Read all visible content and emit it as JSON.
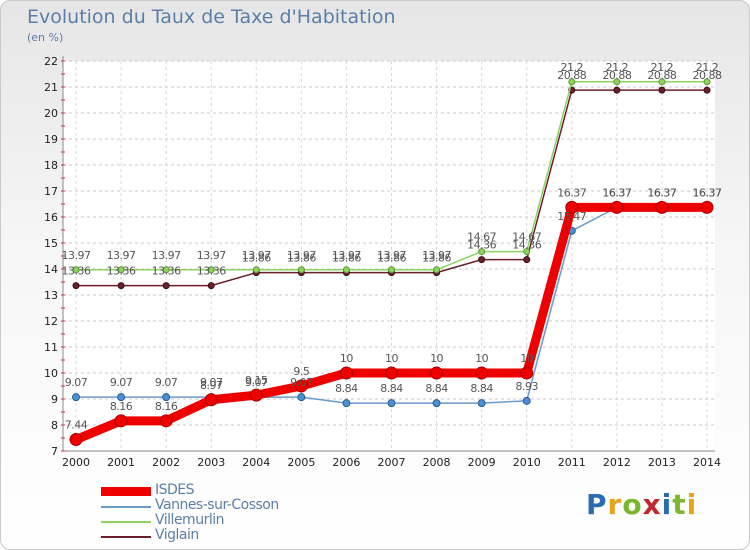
{
  "header": {
    "title": "Evolution du Taux de Taxe d'Habitation",
    "unit": "(en %)"
  },
  "brand": {
    "name": "Proxiti",
    "letter_colors": [
      "#2a6cb3",
      "#e8a317",
      "#7ab72d",
      "#c2272d",
      "#2a6cb3",
      "#7ab72d",
      "#e8a317"
    ]
  },
  "chart_data": {
    "type": "line",
    "title": "Evolution du Taux de Taxe d'Habitation",
    "ylabel": "(en %)",
    "xlabel": "",
    "x": [
      "2000",
      "2001",
      "2002",
      "2003",
      "2004",
      "2005",
      "2006",
      "2007",
      "2008",
      "2009",
      "2010",
      "2011",
      "2012",
      "2013",
      "2014"
    ],
    "ylim": [
      7,
      22
    ],
    "yticks": [
      7,
      8,
      9,
      10,
      11,
      12,
      13,
      14,
      15,
      16,
      17,
      18,
      19,
      20,
      21,
      22
    ],
    "grid": true,
    "legend_position": "bottom-left",
    "series": [
      {
        "name": "ISDES",
        "color": "#ee0000",
        "values": [
          7.44,
          8.16,
          8.16,
          8.97,
          9.15,
          9.5,
          10,
          10,
          10,
          10,
          10,
          16.37,
          16.37,
          16.37,
          16.37
        ],
        "labels": [
          "7.44",
          "8.16",
          "8.16",
          "8.97",
          "9.15",
          "9.5",
          "10",
          "10",
          "10",
          "10",
          "10",
          "16.37",
          "16.37",
          "16.37",
          "16.37"
        ]
      },
      {
        "name": "Vannes-sur-Cosson",
        "color": "#6b9ac9",
        "values": [
          9.07,
          9.07,
          9.07,
          9.07,
          9.07,
          9.07,
          8.84,
          8.84,
          8.84,
          8.84,
          8.93,
          15.47,
          16.37,
          16.37,
          16.37
        ],
        "labels": [
          "9.07",
          "9.07",
          "9.07",
          "9.07",
          "9.07",
          "9.07",
          "8.84",
          "8.84",
          "8.84",
          "8.84",
          "8.93",
          "15.47",
          "16.37",
          "16.37",
          "16.37"
        ]
      },
      {
        "name": "Villemurlin",
        "color": "#8dd35f",
        "values": [
          13.97,
          13.97,
          13.97,
          13.97,
          13.97,
          13.97,
          13.97,
          13.97,
          13.97,
          14.67,
          14.67,
          21.2,
          21.2,
          21.2,
          21.2
        ],
        "labels": [
          "13.97",
          "13.97",
          "13.97",
          "13.97",
          "13.97",
          "13.97",
          "13.97",
          "13.97",
          "13.97",
          "14.67",
          "14.67",
          "21.2",
          "21.2",
          "21.2",
          "21.2"
        ]
      },
      {
        "name": "Viglain",
        "color": "#6b1f2a",
        "values": [
          13.36,
          13.36,
          13.36,
          13.36,
          13.86,
          13.86,
          13.86,
          13.86,
          13.86,
          14.36,
          14.36,
          20.88,
          20.88,
          20.88,
          20.88
        ],
        "labels": [
          "13.36",
          "13.36",
          "13.36",
          "13.36",
          "13.86",
          "13.86",
          "13.86",
          "13.86",
          "13.86",
          "14.36",
          "14.36",
          "20.88",
          "20.88",
          "20.88",
          "20.88"
        ]
      }
    ]
  }
}
